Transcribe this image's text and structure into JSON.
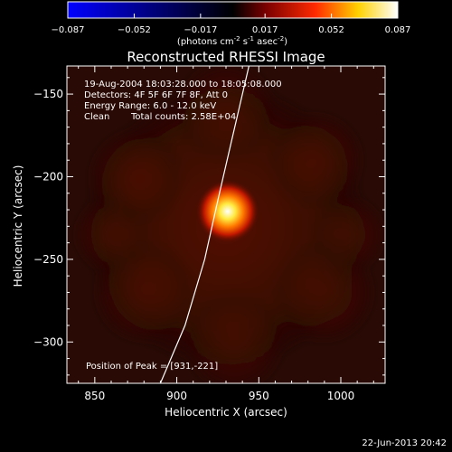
{
  "chart_data": {
    "type": "heatmap",
    "title": "Reconstructed RHESSI Image",
    "colorbar": {
      "ticks": [
        "-0.087",
        "-0.052",
        "-0.017",
        "0.017",
        "0.052",
        "0.087"
      ],
      "range": [
        -0.087,
        0.087
      ],
      "unit_main": "(photons cm",
      "unit_exp1": "-2",
      "unit_mid": " s",
      "unit_exp2": "-1",
      "unit_tail": " asec",
      "unit_exp3": "-2",
      "unit_close": ")",
      "colors": [
        "#0000ff",
        "#000000",
        "#7a0000",
        "#ff2a00",
        "#ffd100",
        "#ffffff"
      ]
    },
    "xlabel": "Heliocentric X (arcsec)",
    "ylabel": "Heliocentric Y (arcsec)",
    "xlim": [
      833,
      1027
    ],
    "ylim": [
      -325,
      -133
    ],
    "xticks": [
      850,
      900,
      950,
      1000
    ],
    "yticks": [
      -300,
      -250,
      -200,
      -150
    ],
    "xtick_labels": [
      "850",
      "900",
      "950",
      "1000"
    ],
    "ytick_labels": [
      "−300",
      "−250",
      "−200",
      "−150"
    ],
    "peak": {
      "x": 931,
      "y": -221,
      "value": 0.087
    },
    "annotations": {
      "time": "19-Aug-2004 18:03:28.000 to 18:05:08.000",
      "detectors": "Detectors: 4F 5F 6F 7F 8F, Att 0",
      "energy": "Energy Range: 6.0 - 12.0 keV",
      "algorithm": "Clean",
      "counts": "Total counts: 2.58E+04",
      "peak_label": "Position of Peak = [931,-221]"
    },
    "limb_curve": [
      [
        890,
        -325
      ],
      [
        905,
        -290
      ],
      [
        917,
        -250
      ],
      [
        926,
        -210
      ],
      [
        933,
        -180
      ],
      [
        940,
        -150
      ],
      [
        944,
        -133
      ]
    ],
    "limb_color": "#ffffff",
    "background_color": "#000000",
    "footer_timestamp": "22-Jun-2013 20:42"
  }
}
